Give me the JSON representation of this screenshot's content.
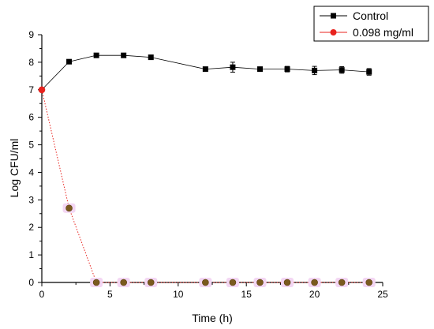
{
  "chart_data": {
    "type": "line",
    "xlabel": "Time (h)",
    "ylabel": "Log CFU/ml",
    "xlim": [
      0,
      25
    ],
    "ylim": [
      0,
      9
    ],
    "xticks": [
      0,
      5,
      10,
      15,
      20,
      25
    ],
    "yticks": [
      0,
      1,
      2,
      3,
      4,
      5,
      6,
      7,
      8,
      9
    ],
    "grid": false,
    "legend_position": "top-right",
    "series": [
      {
        "name": "Control",
        "color": "#000000",
        "marker": "square",
        "line_style": "solid",
        "x": [
          0,
          2,
          4,
          6,
          8,
          12,
          14,
          16,
          18,
          20,
          22,
          24
        ],
        "y": [
          7.0,
          8.02,
          8.25,
          8.25,
          8.18,
          7.75,
          7.82,
          7.75,
          7.75,
          7.7,
          7.72,
          7.65
        ],
        "error": [
          0.05,
          0.05,
          0.06,
          0.05,
          0.05,
          0.06,
          0.18,
          0.05,
          0.1,
          0.15,
          0.12,
          0.12
        ]
      },
      {
        "name": "0.098 mg/ml",
        "color": "#e8231e",
        "marker": "circle",
        "marker_fill": "#7a5a1e",
        "line_style": "dotted",
        "x": [
          0,
          2,
          4,
          6,
          8,
          12,
          14,
          16,
          18,
          20,
          22,
          24
        ],
        "y": [
          7.0,
          2.7,
          0,
          0,
          0,
          0,
          0,
          0,
          0,
          0,
          0,
          0
        ]
      }
    ]
  }
}
